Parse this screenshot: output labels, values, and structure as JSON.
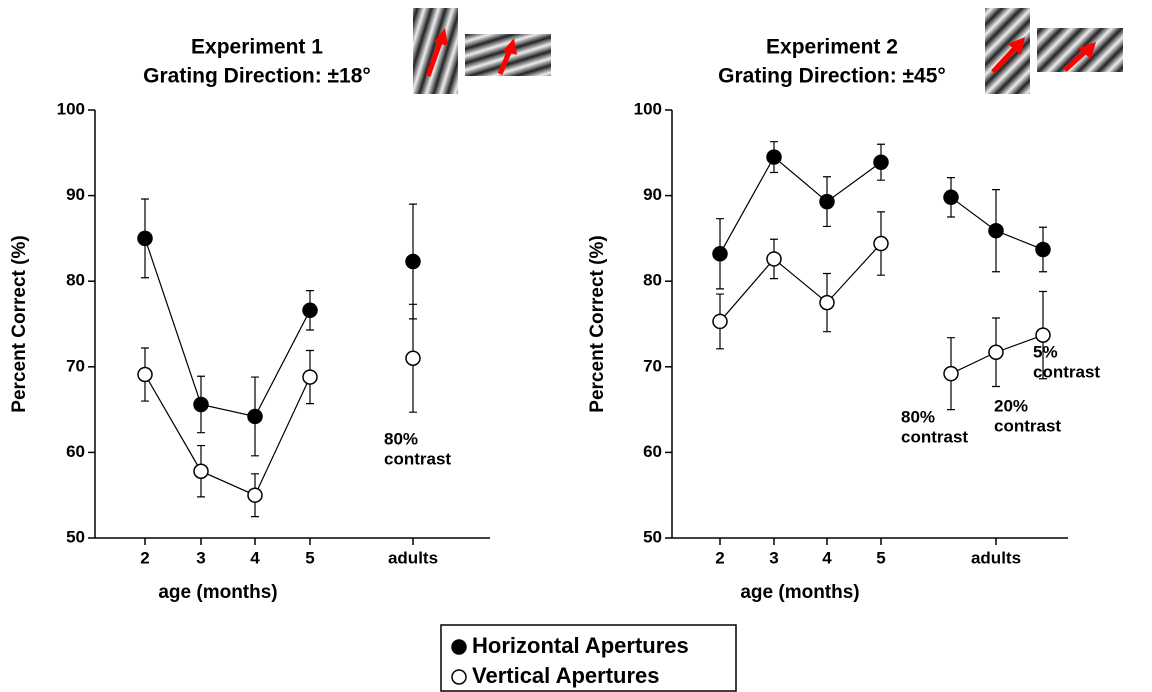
{
  "chart_data": [
    {
      "type": "line",
      "title": "Experiment 1",
      "subtitle": "Grating Direction: ±18°",
      "x_label": "age (months)",
      "y_label": "Percent Correct (%)",
      "categories": [
        "2",
        "3",
        "4",
        "5",
        null,
        "adults"
      ],
      "ylim": [
        50,
        100
      ],
      "yticks": [
        50,
        60,
        70,
        80,
        90,
        100
      ],
      "series": [
        {
          "name": "Horizontal Apertures",
          "color": "#000000",
          "values": [
            85.0,
            65.6,
            64.2,
            76.6,
            null,
            82.3
          ],
          "errors": [
            4.6,
            3.3,
            4.6,
            2.3,
            null,
            6.7
          ]
        },
        {
          "name": "Vertical Apertures",
          "color": "#ffffff",
          "values": [
            69.1,
            57.8,
            55.0,
            68.8,
            null,
            71.0
          ],
          "errors": [
            3.1,
            3.0,
            2.5,
            3.1,
            null,
            6.3
          ]
        }
      ],
      "annotations": [
        [
          "80%",
          "contrast"
        ]
      ]
    },
    {
      "type": "line",
      "title": "Experiment 2",
      "subtitle": "Grating Direction: ±45°",
      "x_label": "age (months)",
      "y_label": "Percent Correct (%)",
      "categories": [
        "2",
        "3",
        "4",
        "5",
        null,
        null,
        "adults",
        null
      ],
      "ylim": [
        50,
        100
      ],
      "yticks": [
        50,
        60,
        70,
        80,
        90,
        100
      ],
      "series": [
        {
          "color": "#000000",
          "values": [
            83.2,
            94.5,
            89.3,
            93.9,
            null,
            89.8,
            85.9,
            83.7
          ],
          "errors": [
            4.1,
            1.8,
            2.9,
            2.1,
            null,
            2.3,
            4.8,
            2.6
          ]
        },
        {
          "color": "#ffffff",
          "values": [
            75.3,
            82.6,
            77.5,
            84.4,
            null,
            69.2,
            71.7,
            73.7
          ],
          "errors": [
            3.2,
            2.3,
            3.4,
            3.7,
            null,
            4.2,
            4.0,
            5.1
          ]
        }
      ],
      "annotations": [
        [
          "80%",
          "contrast"
        ],
        [
          "20%",
          "contrast"
        ],
        [
          "5%",
          "contrast"
        ]
      ]
    }
  ]
}
